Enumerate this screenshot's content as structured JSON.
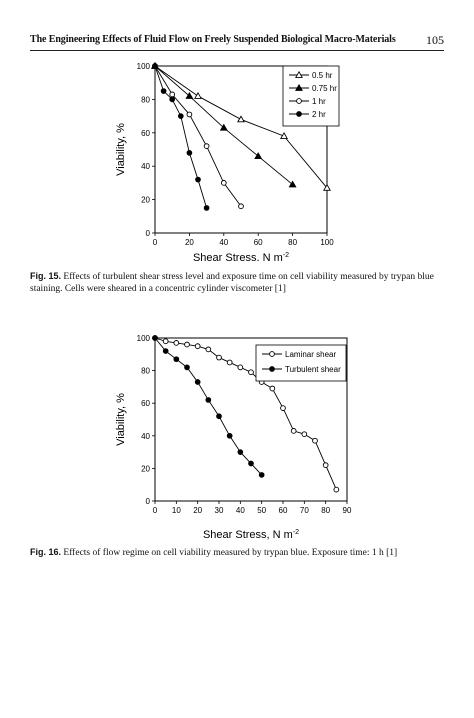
{
  "header": {
    "title": "The Engineering Effects of Fluid Flow on Freely Suspended Biological Macro-Materials",
    "page_number": "105"
  },
  "figures": [
    {
      "caption_label": "Fig. 15.",
      "caption_text": "Effects of turbulent shear stress level and exposure time on cell viability measured by trypan blue staining. Cells were sheared in a concentric cylinder viscometer [1]"
    },
    {
      "caption_label": "Fig. 16.",
      "caption_text": "Effects of flow regime on cell viability measured by trypan blue. Exposure time: 1 h [1]"
    }
  ],
  "chart_data": [
    {
      "type": "line",
      "title": "",
      "xlabel": "Shear Stress, N m",
      "xlabel_sup": "-2",
      "ylabel": "Viability, %",
      "xlim": [
        0,
        100
      ],
      "ylim": [
        0,
        100
      ],
      "xticks": [
        0,
        20,
        40,
        60,
        80,
        100
      ],
      "yticks": [
        0,
        20,
        40,
        60,
        80,
        100
      ],
      "legend_position": "top-right",
      "series": [
        {
          "name": "0.5 hr",
          "marker": "open-triangle",
          "x": [
            0,
            25,
            50,
            75,
            100
          ],
          "y": [
            100,
            82,
            68,
            58,
            27
          ]
        },
        {
          "name": "0.75 hr",
          "marker": "filled-triangle",
          "x": [
            0,
            20,
            40,
            60,
            80
          ],
          "y": [
            100,
            82,
            63,
            46,
            29
          ]
        },
        {
          "name": "1 hr",
          "marker": "open-circle",
          "x": [
            0,
            10,
            20,
            30,
            40,
            50
          ],
          "y": [
            100,
            83,
            71,
            52,
            30,
            16
          ]
        },
        {
          "name": "2 hr",
          "marker": "filled-circle",
          "x": [
            0,
            5,
            10,
            15,
            20,
            25,
            30
          ],
          "y": [
            100,
            85,
            80,
            70,
            48,
            32,
            15
          ]
        }
      ]
    },
    {
      "type": "line",
      "title": "",
      "xlabel": "Shear Stress, N m",
      "xlabel_sup": "-2",
      "ylabel": "Viability, %",
      "xlim": [
        0,
        90
      ],
      "ylim": [
        0,
        100
      ],
      "xticks": [
        0,
        10,
        20,
        30,
        40,
        50,
        60,
        70,
        80,
        90
      ],
      "yticks": [
        0,
        20,
        40,
        60,
        80,
        100
      ],
      "legend_position": "top-right",
      "series": [
        {
          "name": "Laminar shear",
          "marker": "open-circle",
          "x": [
            0,
            5,
            10,
            15,
            20,
            25,
            30,
            35,
            40,
            45,
            50,
            55,
            60,
            65,
            70,
            75,
            80,
            85
          ],
          "y": [
            100,
            98,
            97,
            96,
            95,
            93,
            88,
            85,
            82,
            79,
            73,
            69,
            57,
            43,
            41,
            37,
            22,
            7
          ]
        },
        {
          "name": "Turbulent shear",
          "marker": "filled-circle",
          "x": [
            0,
            5,
            10,
            15,
            20,
            25,
            30,
            35,
            40,
            45,
            50
          ],
          "y": [
            100,
            92,
            87,
            82,
            73,
            62,
            52,
            40,
            30,
            23,
            16
          ]
        }
      ]
    }
  ]
}
